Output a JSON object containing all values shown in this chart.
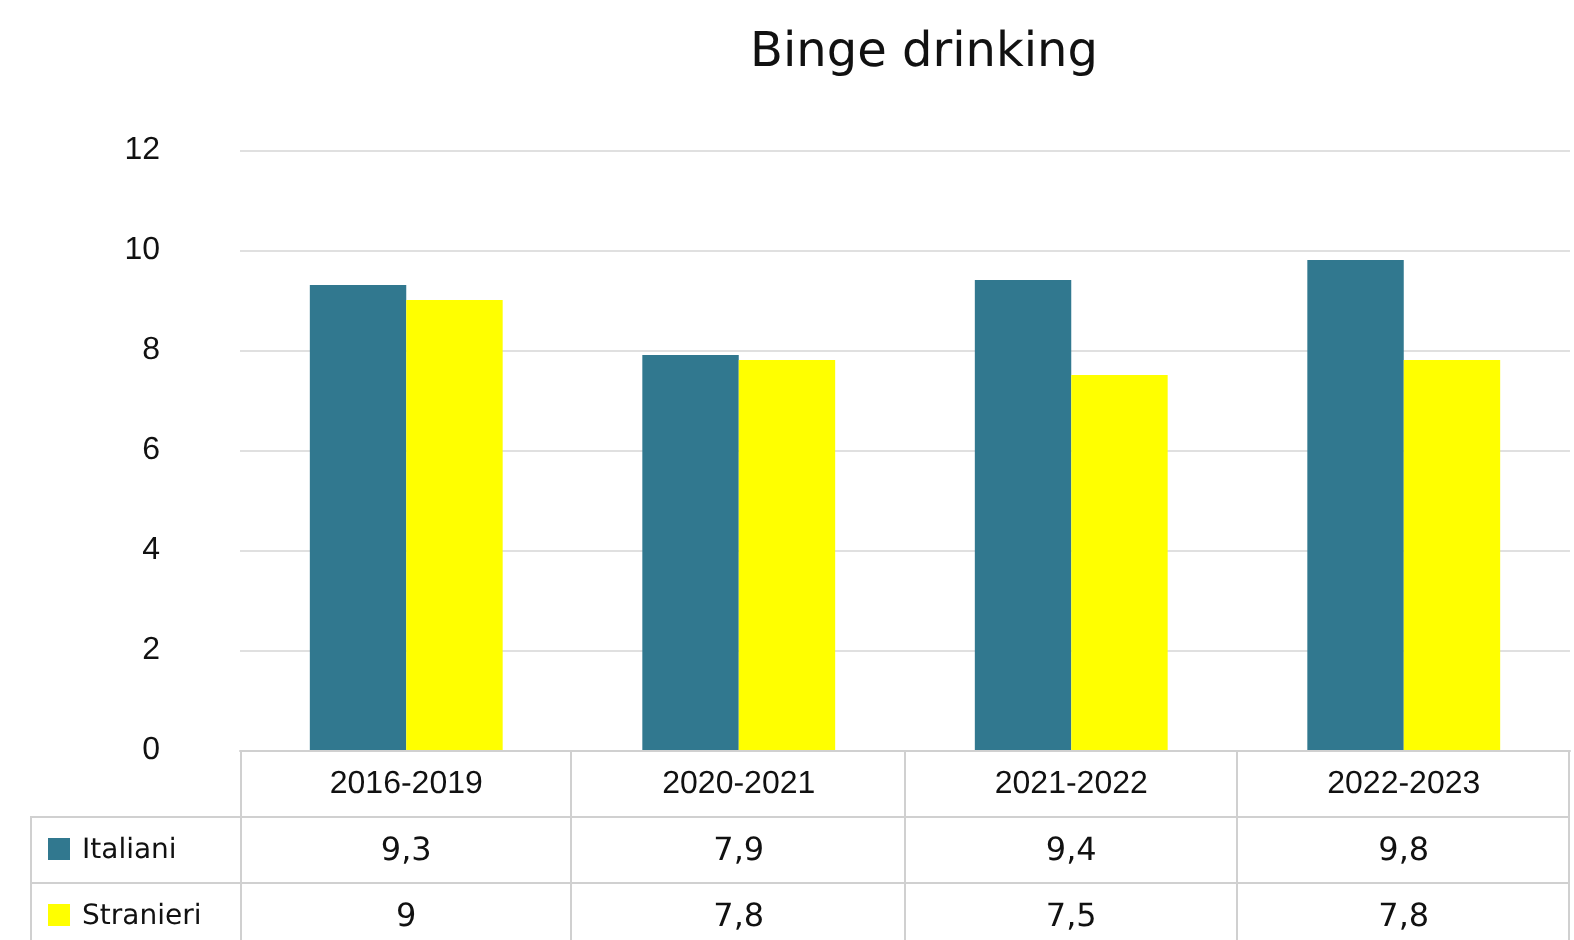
{
  "chart_data": {
    "type": "bar",
    "title": "Binge drinking",
    "categories": [
      "2016-2019",
      "2020-2021",
      "2021-2022",
      "2022-2023"
    ],
    "series": [
      {
        "name": "Italiani",
        "color": "#31788f",
        "values": [
          9.3,
          7.9,
          9.4,
          9.8
        ],
        "value_labels": [
          "9,3",
          "7,9",
          "9,4",
          "9,8"
        ]
      },
      {
        "name": "Stranieri",
        "color": "#ffff00",
        "values": [
          9,
          7.8,
          7.5,
          7.8
        ],
        "value_labels": [
          "9",
          "7,8",
          "7,5",
          "7,8"
        ]
      }
    ],
    "ylim": [
      0,
      12
    ],
    "yticks": [
      0,
      2,
      4,
      6,
      8,
      10,
      12
    ],
    "grid": "y",
    "legend": "bottom left"
  }
}
